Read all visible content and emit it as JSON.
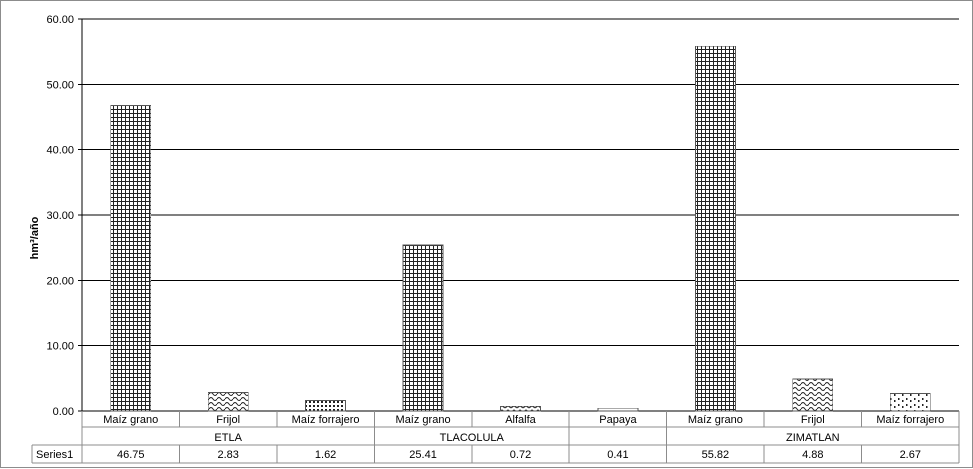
{
  "chart_data": {
    "type": "bar",
    "ylabel": "hm³/año",
    "ylim": [
      0,
      60
    ],
    "y_ticks": [
      "0.00",
      "10.00",
      "20.00",
      "30.00",
      "40.00",
      "50.00",
      "60.00"
    ],
    "grid": true,
    "categories": [
      "Maíz grano",
      "Frijol",
      "Maíz forrajero",
      "Maíz grano",
      "Alfalfa",
      "Papaya",
      "Maíz grano",
      "Frijol",
      "Maíz forrajero"
    ],
    "groups": [
      {
        "label": "ETLA",
        "span": [
          0,
          2
        ]
      },
      {
        "label": "TLACOLULA",
        "span": [
          3,
          4
        ]
      },
      {
        "label": "",
        "span": [
          5,
          5
        ]
      },
      {
        "label": "ZIMATLAN",
        "span": [
          6,
          8
        ]
      }
    ],
    "series": [
      {
        "name": "Series1",
        "values": [
          46.75,
          2.83,
          1.62,
          25.41,
          0.72,
          0.41,
          55.82,
          4.88,
          2.67
        ],
        "labels": [
          "46.75",
          "2.83",
          "1.62",
          "25.41",
          "0.72",
          "0.41",
          "55.82",
          "4.88",
          "2.67"
        ],
        "patterns": [
          "grid",
          "wave",
          "dots",
          "grid",
          "zigzag",
          "solid",
          "grid",
          "wave",
          "sparse"
        ]
      }
    ],
    "data_table": true
  }
}
